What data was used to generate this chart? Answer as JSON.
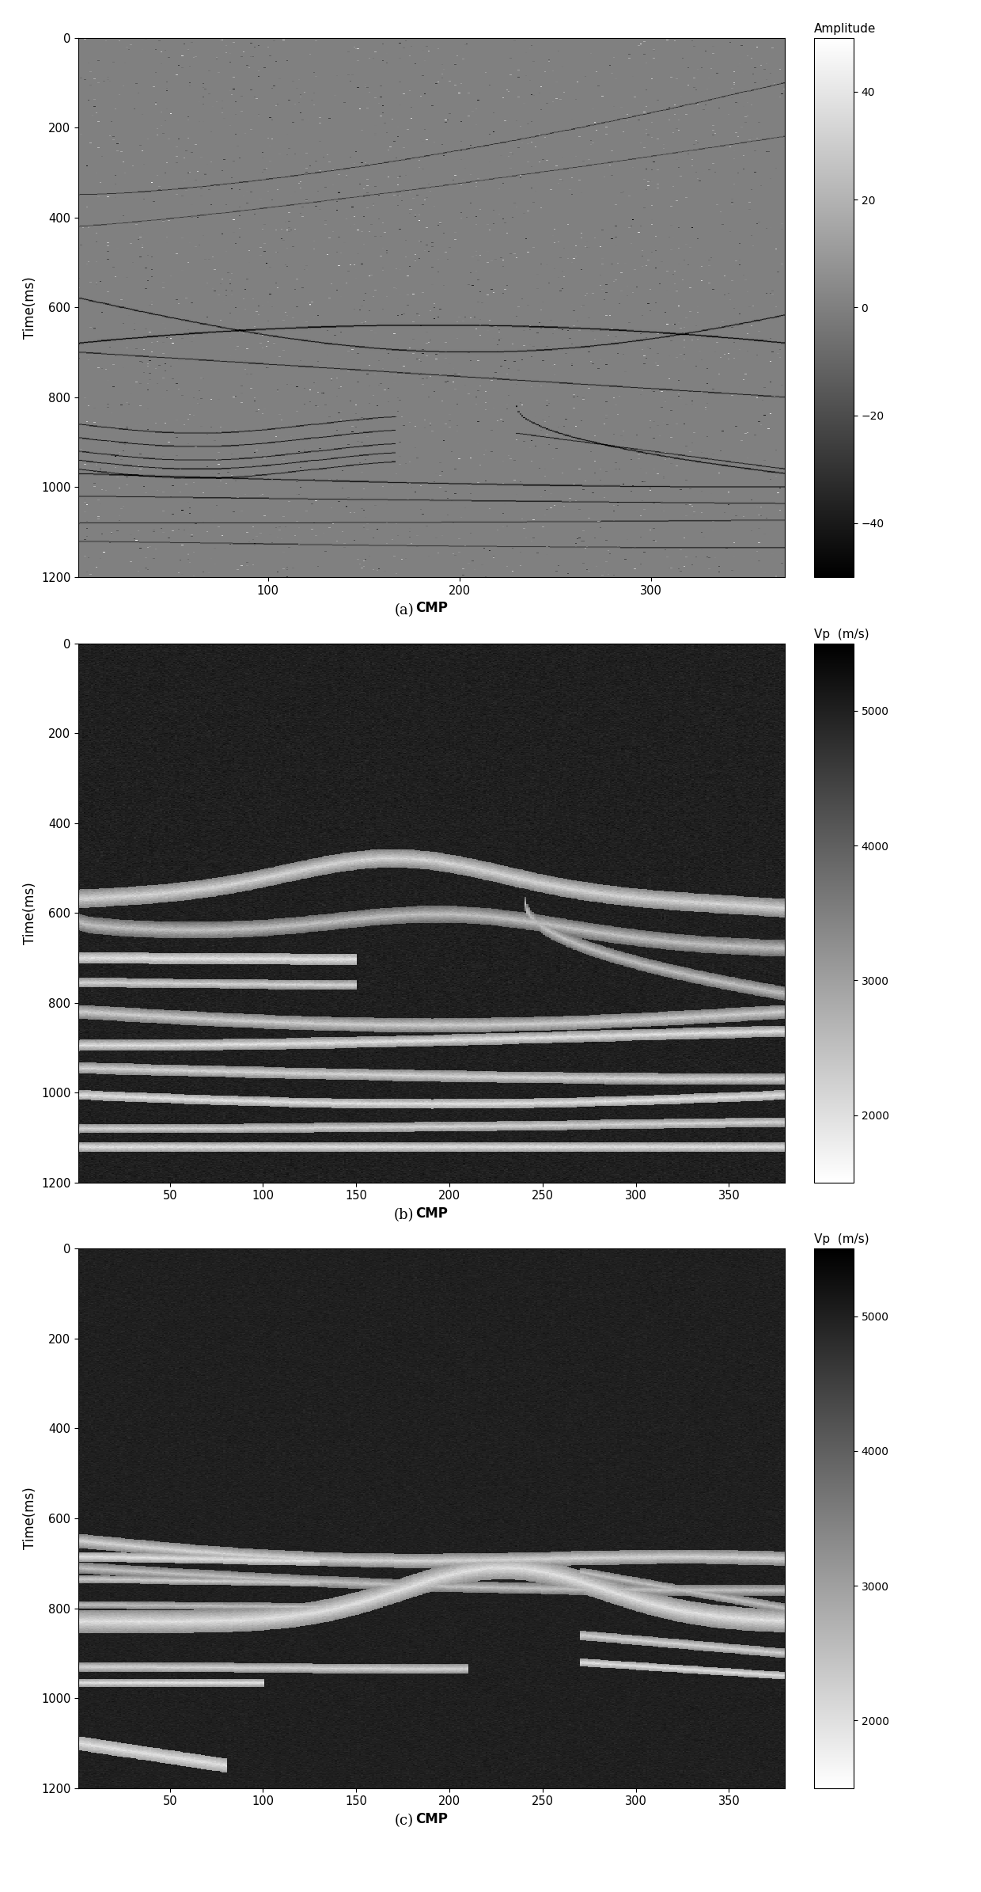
{
  "panel_a": {
    "cbar_label": "Amplitude",
    "xlabel": "CMP",
    "ylabel": "Time(ms)",
    "xlim": [
      1,
      370
    ],
    "ylim": [
      1200,
      0
    ],
    "xticks": [
      100,
      200,
      300
    ],
    "yticks": [
      0,
      200,
      400,
      600,
      800,
      1000,
      1200
    ],
    "cmap": "gray",
    "vmin": -50,
    "vmax": 50,
    "cbar_ticks": [
      40,
      20,
      0,
      -20,
      -40
    ],
    "label": "(a)"
  },
  "panel_b": {
    "cbar_label": "Vp  (m/s)",
    "xlabel": "CMP",
    "ylabel": "Time(ms)",
    "xlim": [
      1,
      380
    ],
    "ylim": [
      1200,
      0
    ],
    "xticks": [
      50,
      100,
      150,
      200,
      250,
      300,
      350
    ],
    "yticks": [
      0,
      200,
      400,
      600,
      800,
      1000,
      1200
    ],
    "cmap": "gray_r",
    "vmin": 1500,
    "vmax": 5500,
    "cbar_ticks": [
      5000,
      4000,
      3000,
      2000
    ],
    "label": "(b)"
  },
  "panel_c": {
    "cbar_label": "Vp  (m/s)",
    "xlabel": "CMP",
    "ylabel": "Time(ms)",
    "xlim": [
      1,
      380
    ],
    "ylim": [
      1200,
      0
    ],
    "xticks": [
      50,
      100,
      150,
      200,
      250,
      300,
      350
    ],
    "yticks": [
      0,
      200,
      400,
      600,
      800,
      1000,
      1200
    ],
    "cmap": "gray_r",
    "vmin": 1500,
    "vmax": 5500,
    "cbar_ticks": [
      5000,
      4000,
      3000,
      2000
    ],
    "label": "(c)"
  },
  "bg_color": "#ffffff",
  "figsize": [
    12.4,
    23.9
  ],
  "dpi": 100
}
